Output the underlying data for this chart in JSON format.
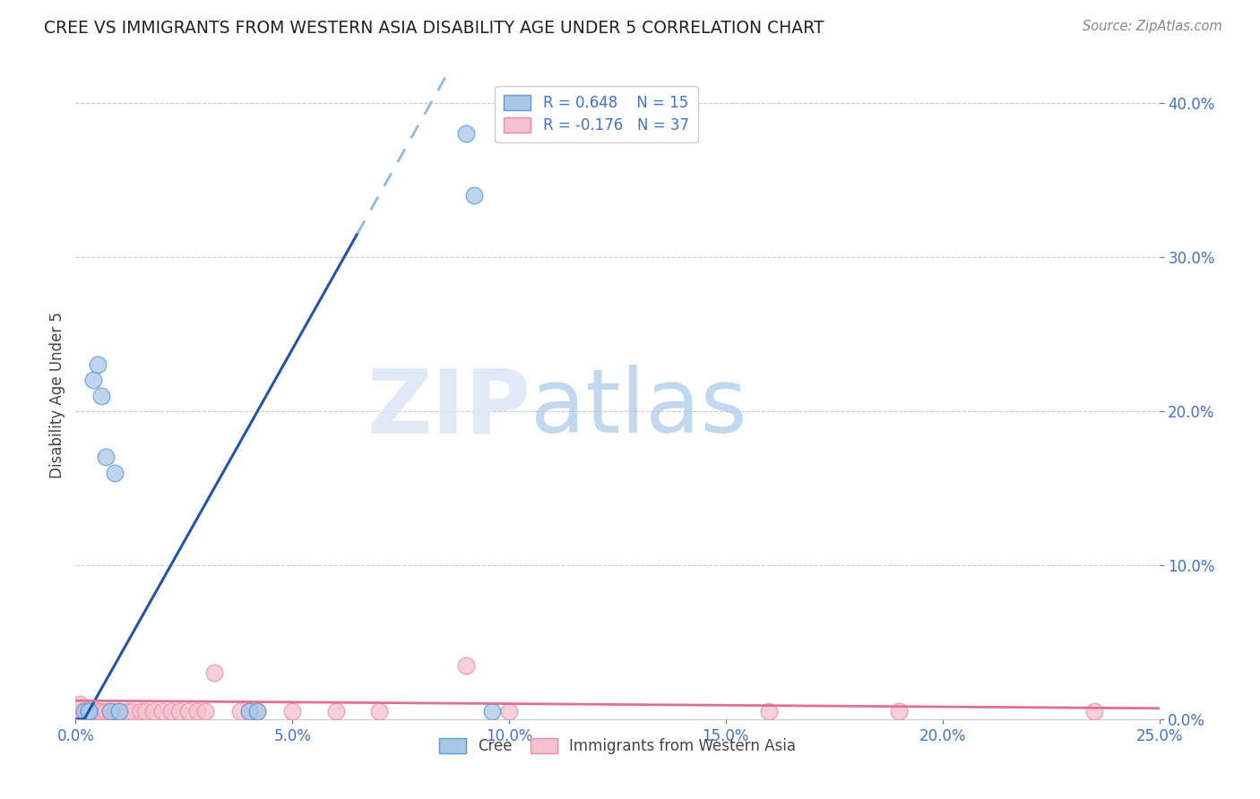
{
  "title": "CREE VS IMMIGRANTS FROM WESTERN ASIA DISABILITY AGE UNDER 5 CORRELATION CHART",
  "source": "Source: ZipAtlas.com",
  "ylabel": "Disability Age Under 5",
  "xlim": [
    0.0,
    0.25
  ],
  "ylim": [
    0.0,
    0.42
  ],
  "xticks": [
    0.0,
    0.05,
    0.1,
    0.15,
    0.2,
    0.25
  ],
  "yticks": [
    0.0,
    0.1,
    0.2,
    0.3,
    0.4
  ],
  "grid_color": "#cccccc",
  "background_color": "#ffffff",
  "cree_color": "#a8c8e8",
  "cree_edge_color": "#5b9bd5",
  "cree_line_color": "#2255aa",
  "cree_dash_color": "#90b8e0",
  "cree_R": 0.648,
  "cree_N": 15,
  "immigrant_color": "#f5c0d0",
  "immigrant_edge_color": "#e88fa8",
  "immigrant_line_color": "#e07090",
  "immigrant_R": -0.176,
  "immigrant_N": 37,
  "cree_x": [
    0.002,
    0.003,
    0.003,
    0.004,
    0.005,
    0.006,
    0.007,
    0.008,
    0.009,
    0.01,
    0.04,
    0.042,
    0.09,
    0.092,
    0.096
  ],
  "cree_y": [
    0.005,
    0.005,
    0.005,
    0.22,
    0.23,
    0.21,
    0.17,
    0.005,
    0.16,
    0.005,
    0.005,
    0.005,
    0.38,
    0.34,
    0.005
  ],
  "immigrant_x": [
    0.001,
    0.001,
    0.002,
    0.002,
    0.003,
    0.003,
    0.004,
    0.005,
    0.005,
    0.006,
    0.007,
    0.008,
    0.009,
    0.01,
    0.012,
    0.013,
    0.015,
    0.016,
    0.018,
    0.02,
    0.022,
    0.024,
    0.026,
    0.028,
    0.03,
    0.032,
    0.038,
    0.04,
    0.042,
    0.05,
    0.06,
    0.07,
    0.09,
    0.1,
    0.16,
    0.19,
    0.235
  ],
  "immigrant_y": [
    0.005,
    0.01,
    0.005,
    0.005,
    0.005,
    0.005,
    0.005,
    0.005,
    0.005,
    0.005,
    0.005,
    0.005,
    0.005,
    0.005,
    0.005,
    0.005,
    0.005,
    0.005,
    0.005,
    0.005,
    0.005,
    0.005,
    0.005,
    0.005,
    0.005,
    0.03,
    0.005,
    0.005,
    0.005,
    0.005,
    0.005,
    0.005,
    0.035,
    0.005,
    0.005,
    0.005,
    0.005
  ]
}
